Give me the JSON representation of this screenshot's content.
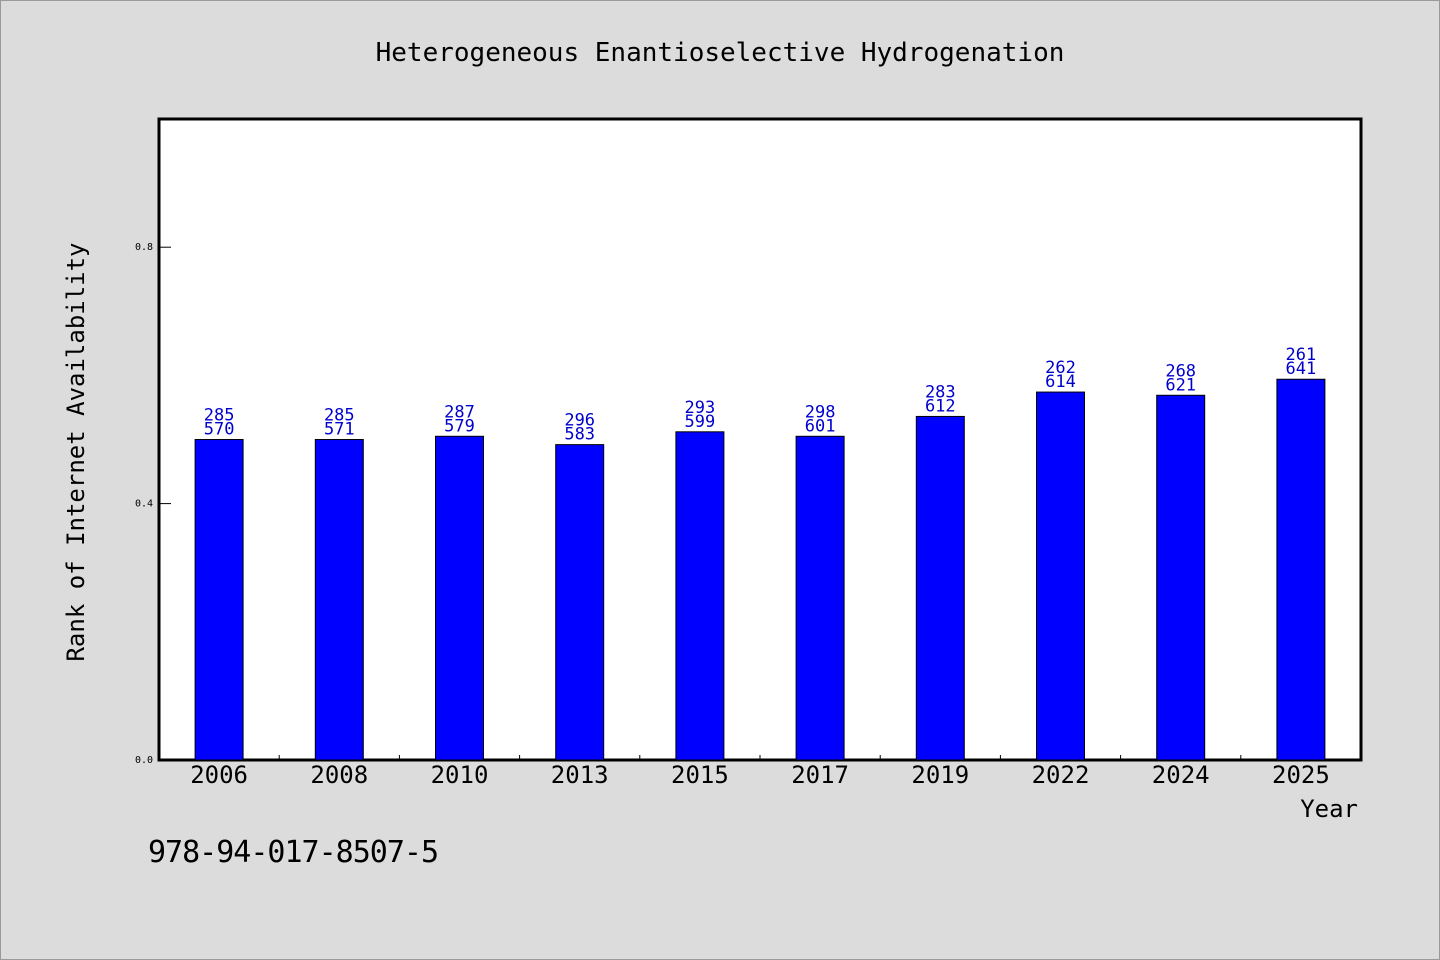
{
  "chart_data": {
    "type": "bar",
    "title": "Heterogeneous Enantioselective Hydrogenation",
    "xlabel": "Year",
    "ylabel": "Rank of Internet Availability",
    "categories": [
      "2006",
      "2008",
      "2010",
      "2013",
      "2015",
      "2017",
      "2019",
      "2022",
      "2024",
      "2025"
    ],
    "values": [
      0.5,
      0.5,
      0.505,
      0.492,
      0.512,
      0.505,
      0.536,
      0.574,
      0.569,
      0.594
    ],
    "bar_labels_top": [
      "285",
      "285",
      "287",
      "296",
      "293",
      "298",
      "283",
      "262",
      "268",
      "261"
    ],
    "bar_labels_bottom": [
      "570",
      "571",
      "579",
      "583",
      "599",
      "601",
      "612",
      "614",
      "621",
      "641"
    ],
    "ylim": [
      0,
      1.0
    ],
    "yticks": [
      0.0,
      0.4,
      0.8
    ],
    "ytick_labels": [
      "0.0",
      "0.4",
      "0.8"
    ],
    "grid": false,
    "colors": {
      "bar": "#0000ff",
      "bar_label": "#0000cc",
      "background": "#dcdcdc",
      "plot_background": "#ffffff"
    }
  },
  "footer": {
    "code": "978-94-017-8507-5"
  }
}
